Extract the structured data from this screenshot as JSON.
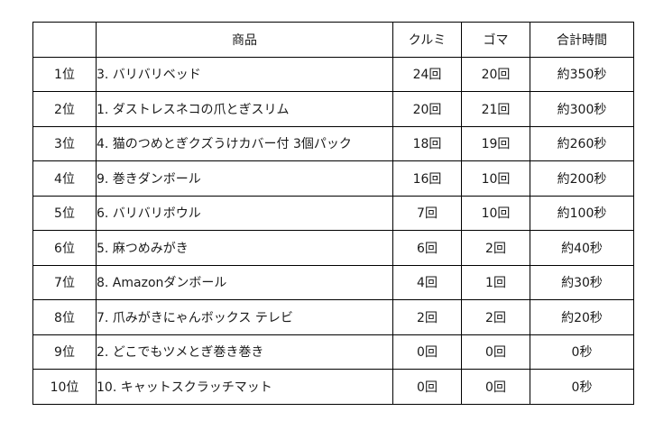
{
  "table": {
    "headers": {
      "rank": "",
      "product": "商品",
      "walnut": "クルミ",
      "goma": "ゴマ",
      "total_time": "合計時間"
    },
    "rows": [
      {
        "rank": "1位",
        "product": "3. バリバリベッド",
        "walnut": "24回",
        "goma": "20回",
        "total_time": "約350秒"
      },
      {
        "rank": "2位",
        "product": "1. ダストレスネコの爪とぎスリム",
        "walnut": "20回",
        "goma": "21回",
        "total_time": "約300秒"
      },
      {
        "rank": "3位",
        "product": "4. 猫のつめとぎクズうけカバー付 3個パック",
        "walnut": "18回",
        "goma": "19回",
        "total_time": "約260秒"
      },
      {
        "rank": "4位",
        "product": "9. 巻きダンボール",
        "walnut": "16回",
        "goma": "10回",
        "total_time": "約200秒"
      },
      {
        "rank": "5位",
        "product": "6. バリバリボウル",
        "walnut": "7回",
        "goma": "10回",
        "total_time": "約100秒"
      },
      {
        "rank": "6位",
        "product": "5. 麻つめみがき",
        "walnut": "6回",
        "goma": "2回",
        "total_time": "約40秒"
      },
      {
        "rank": "7位",
        "product": "8. Amazonダンボール",
        "walnut": "4回",
        "goma": "1回",
        "total_time": "約30秒"
      },
      {
        "rank": "8位",
        "product": "7. 爪みがきにゃんボックス テレビ",
        "walnut": "2回",
        "goma": "2回",
        "total_time": "約20秒"
      },
      {
        "rank": "9位",
        "product": "2. どこでもツメとぎ巻き巻き",
        "walnut": "0回",
        "goma": "0回",
        "total_time": "0秒"
      },
      {
        "rank": "10位",
        "product": "10. キャットスクラッチマット",
        "walnut": "0回",
        "goma": "0回",
        "total_time": "0秒"
      }
    ]
  }
}
